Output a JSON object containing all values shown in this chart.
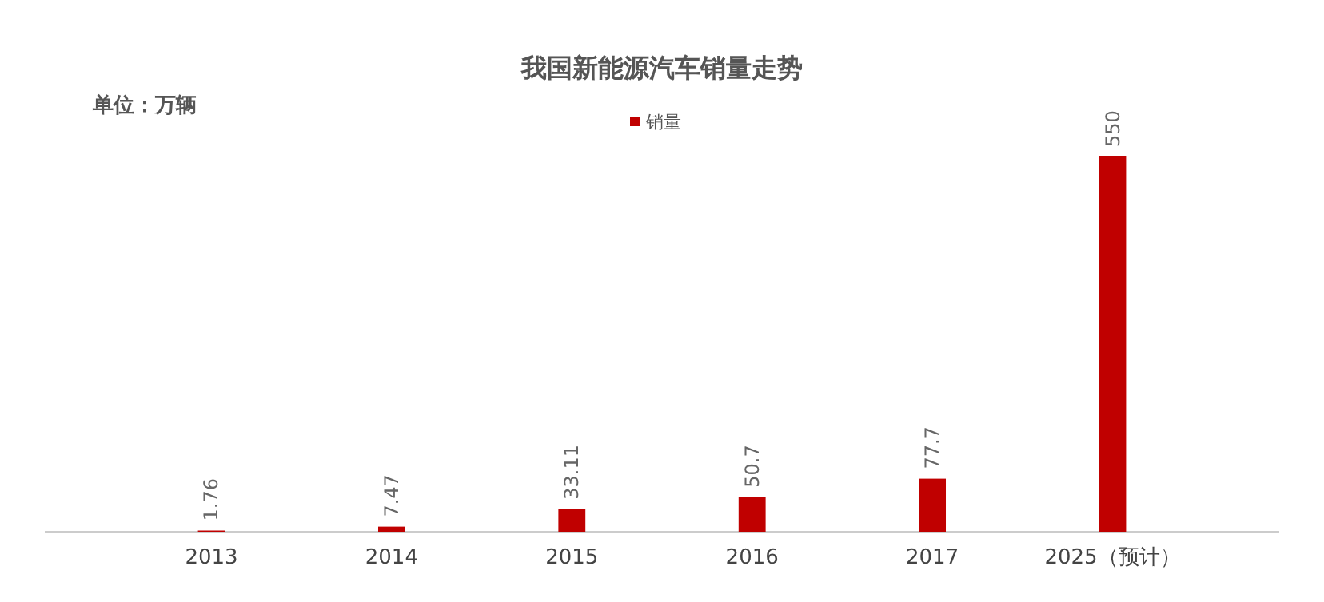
{
  "chart_data": {
    "type": "bar",
    "title": "我国新能源汽车销量走势",
    "annotations": [
      "单位：万辆"
    ],
    "categories": [
      "2013",
      "2014",
      "2015",
      "2016",
      "2017",
      "2025（预计）"
    ],
    "series": [
      {
        "name": "销量",
        "color": "#c00000",
        "values": [
          1.76,
          7.47,
          33.11,
          50.7,
          77.7,
          550
        ]
      }
    ],
    "data_labels": true,
    "legend": "top"
  }
}
